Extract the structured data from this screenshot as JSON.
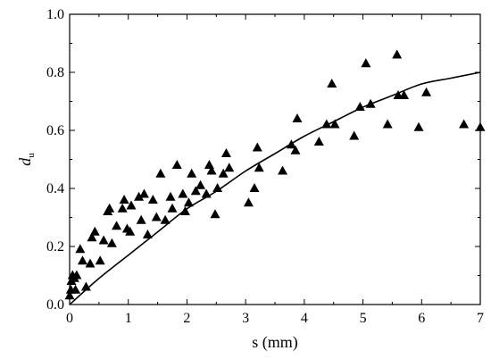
{
  "chart_data": {
    "type": "scatter",
    "xlabel": "s (mm)",
    "ylabel": {
      "main": "d",
      "sub": "u"
    },
    "xlim": [
      0,
      7
    ],
    "ylim": [
      0.0,
      1.0
    ],
    "xticks": [
      "0",
      "1",
      "2",
      "3",
      "4",
      "5",
      "6",
      "7"
    ],
    "yticks": [
      "0.0",
      "0.2",
      "0.4",
      "0.6",
      "0.8",
      "1.0"
    ],
    "grid": false,
    "legend": "none",
    "series": [
      {
        "type": "scatter",
        "marker": "triangle",
        "color": "#000000",
        "points": [
          [
            0.0,
            0.03
          ],
          [
            0.02,
            0.05
          ],
          [
            0.03,
            0.08
          ],
          [
            0.05,
            0.1
          ],
          [
            0.08,
            0.09
          ],
          [
            0.1,
            0.05
          ],
          [
            0.12,
            0.1
          ],
          [
            0.18,
            0.19
          ],
          [
            0.22,
            0.15
          ],
          [
            0.28,
            0.06
          ],
          [
            0.35,
            0.14
          ],
          [
            0.38,
            0.23
          ],
          [
            0.43,
            0.25
          ],
          [
            0.52,
            0.15
          ],
          [
            0.58,
            0.22
          ],
          [
            0.65,
            0.32
          ],
          [
            0.68,
            0.33
          ],
          [
            0.72,
            0.21
          ],
          [
            0.8,
            0.27
          ],
          [
            0.9,
            0.33
          ],
          [
            0.93,
            0.36
          ],
          [
            0.98,
            0.26
          ],
          [
            1.03,
            0.25
          ],
          [
            1.05,
            0.34
          ],
          [
            1.18,
            0.37
          ],
          [
            1.22,
            0.29
          ],
          [
            1.27,
            0.38
          ],
          [
            1.33,
            0.24
          ],
          [
            1.42,
            0.36
          ],
          [
            1.48,
            0.3
          ],
          [
            1.55,
            0.45
          ],
          [
            1.63,
            0.29
          ],
          [
            1.72,
            0.37
          ],
          [
            1.75,
            0.33
          ],
          [
            1.83,
            0.48
          ],
          [
            1.93,
            0.38
          ],
          [
            1.97,
            0.32
          ],
          [
            2.03,
            0.35
          ],
          [
            2.08,
            0.45
          ],
          [
            2.15,
            0.39
          ],
          [
            2.23,
            0.41
          ],
          [
            2.33,
            0.38
          ],
          [
            2.38,
            0.48
          ],
          [
            2.42,
            0.46
          ],
          [
            2.48,
            0.31
          ],
          [
            2.52,
            0.4
          ],
          [
            2.62,
            0.45
          ],
          [
            2.67,
            0.52
          ],
          [
            2.72,
            0.47
          ],
          [
            3.05,
            0.35
          ],
          [
            3.15,
            0.4
          ],
          [
            3.2,
            0.54
          ],
          [
            3.23,
            0.47
          ],
          [
            3.63,
            0.46
          ],
          [
            3.78,
            0.55
          ],
          [
            3.85,
            0.53
          ],
          [
            3.88,
            0.64
          ],
          [
            4.25,
            0.56
          ],
          [
            4.38,
            0.62
          ],
          [
            4.47,
            0.76
          ],
          [
            4.52,
            0.62
          ],
          [
            4.85,
            0.58
          ],
          [
            4.95,
            0.68
          ],
          [
            5.05,
            0.83
          ],
          [
            5.13,
            0.69
          ],
          [
            5.42,
            0.62
          ],
          [
            5.58,
            0.86
          ],
          [
            5.6,
            0.72
          ],
          [
            5.7,
            0.72
          ],
          [
            5.95,
            0.61
          ],
          [
            6.08,
            0.73
          ],
          [
            6.72,
            0.62
          ],
          [
            7.0,
            0.61
          ]
        ]
      },
      {
        "type": "line",
        "color": "#000000",
        "points": [
          [
            0.0,
            0.0
          ],
          [
            0.5,
            0.09
          ],
          [
            1.0,
            0.17
          ],
          [
            1.5,
            0.25
          ],
          [
            2.0,
            0.33
          ],
          [
            2.5,
            0.39
          ],
          [
            3.0,
            0.46
          ],
          [
            3.5,
            0.52
          ],
          [
            4.0,
            0.58
          ],
          [
            4.5,
            0.63
          ],
          [
            5.0,
            0.68
          ],
          [
            5.5,
            0.72
          ],
          [
            6.0,
            0.76
          ],
          [
            6.5,
            0.78
          ],
          [
            7.0,
            0.8
          ]
        ]
      }
    ]
  }
}
